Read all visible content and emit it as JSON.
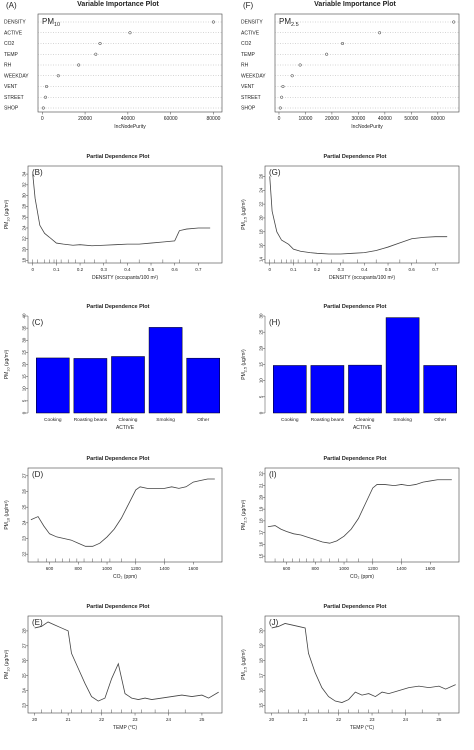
{
  "charts": [
    {
      "id": "A",
      "letter": "(A)",
      "title": "Variable Importance Plot",
      "type": "scatter-dot",
      "panel_label_main": "PM",
      "panel_label_sub": "10",
      "xlabel": "IncNodePurity",
      "xlim": [
        -2000,
        84000
      ],
      "xticks": [
        0,
        20000,
        40000,
        60000,
        80000
      ],
      "categories": [
        "DENSITY",
        "ACTIVE",
        "CO2",
        "TEMP",
        "RH",
        "WEEKDAY",
        "VENT",
        "STREET",
        "SHOP"
      ],
      "values": [
        80000,
        41000,
        27000,
        25000,
        17000,
        7500,
        2000,
        1500,
        500
      ]
    },
    {
      "id": "F",
      "letter": "(F)",
      "title": "Variable Importance Plot",
      "type": "scatter-dot",
      "panel_label_main": "PM",
      "panel_label_sub": "2.5",
      "xlabel": "IncNodePurity",
      "xlim": [
        -1500,
        68000
      ],
      "xticks": [
        0,
        10000,
        20000,
        30000,
        40000,
        50000,
        60000
      ],
      "categories": [
        "DENSITY",
        "ACTIVE",
        "CO2",
        "TEMP",
        "RH",
        "WEEKDAY",
        "VENT",
        "STREET",
        "SHOP"
      ],
      "values": [
        66000,
        38000,
        24000,
        18000,
        8000,
        5000,
        1500,
        1000,
        500
      ]
    },
    {
      "id": "B",
      "letter": "(B)",
      "title": "Partial Dependence Plot",
      "type": "line",
      "ylabel_main": "PM",
      "ylabel_sub": "10",
      "ylabel_unit": " (μg/m³)",
      "xlabel": "DENSITY (occupants/100 m²)",
      "xlim": [
        -0.02,
        0.8
      ],
      "ylim": [
        17.5,
        35.5
      ],
      "xticks": [
        0,
        0.1,
        0.2,
        0.3,
        0.4,
        0.5,
        0.6,
        0.7
      ],
      "yticks": [
        18,
        20,
        22,
        24,
        26,
        28,
        30,
        32,
        34
      ],
      "x": [
        0,
        0.01,
        0.03,
        0.05,
        0.07,
        0.1,
        0.13,
        0.17,
        0.2,
        0.25,
        0.3,
        0.35,
        0.4,
        0.45,
        0.5,
        0.55,
        0.6,
        0.62,
        0.65,
        0.7,
        0.75
      ],
      "y": [
        34,
        29.5,
        24.5,
        23,
        22.3,
        21.2,
        21,
        20.8,
        20.9,
        20.7,
        20.8,
        20.9,
        21,
        21,
        21.2,
        21.4,
        21.6,
        23.5,
        23.8,
        24,
        24
      ],
      "rug": [
        0.0,
        0.02,
        0.05,
        0.07,
        0.09,
        0.1,
        0.12,
        0.15,
        0.18,
        0.22,
        0.26,
        0.31,
        0.37,
        0.45,
        0.55,
        0.62
      ]
    },
    {
      "id": "G",
      "letter": "(G)",
      "title": "Partial Dependence Plot",
      "type": "line",
      "ylabel_main": "PM",
      "ylabel_sub": "2.5",
      "ylabel_unit": " (μg/m³)",
      "xlabel": "DENSITY (occupants/100 m²)",
      "xlim": [
        -0.02,
        0.8
      ],
      "ylim": [
        13.5,
        27.5
      ],
      "xticks": [
        0,
        0.1,
        0.2,
        0.3,
        0.4,
        0.5,
        0.6,
        0.7
      ],
      "yticks": [
        14,
        16,
        18,
        20,
        22,
        24,
        26
      ],
      "x": [
        0,
        0.01,
        0.03,
        0.05,
        0.08,
        0.1,
        0.13,
        0.17,
        0.2,
        0.25,
        0.3,
        0.35,
        0.4,
        0.45,
        0.5,
        0.55,
        0.6,
        0.65,
        0.7,
        0.75
      ],
      "y": [
        26,
        21,
        18,
        16.8,
        16.2,
        15.5,
        15.2,
        15,
        14.9,
        14.8,
        14.8,
        14.9,
        15,
        15.3,
        15.8,
        16.4,
        17,
        17.2,
        17.3,
        17.3
      ],
      "rug": [
        0.0,
        0.02,
        0.05,
        0.07,
        0.09,
        0.1,
        0.12,
        0.15,
        0.18,
        0.22,
        0.26,
        0.31,
        0.37,
        0.45,
        0.55,
        0.62
      ]
    },
    {
      "id": "C",
      "letter": "(C)",
      "title": "Partial Dependence Plot",
      "type": "bar",
      "ylabel_main": "PM",
      "ylabel_sub": "10",
      "ylabel_unit": " (μg/m³)",
      "xlabel": "ACTIVE",
      "ylim": [
        0,
        40
      ],
      "yticks": [
        0,
        5,
        10,
        15,
        20,
        25,
        30,
        35,
        40
      ],
      "categories": [
        "Cooking",
        "Roasting beans",
        "Cleaning",
        "Smoking",
        "Other"
      ],
      "values": [
        22.7,
        22.5,
        23.3,
        35.3,
        22.6
      ],
      "bar_color": "#0000ff"
    },
    {
      "id": "H",
      "letter": "(H)",
      "title": "Partial Dependence Plot",
      "type": "bar",
      "ylabel_main": "PM",
      "ylabel_sub": "2.5",
      "ylabel_unit": " (μg/m³)",
      "xlabel": "ACTIVE",
      "ylim": [
        0,
        30
      ],
      "yticks": [
        0,
        5,
        10,
        15,
        20,
        25,
        30
      ],
      "categories": [
        "Cooking",
        "Roasting beans",
        "Cleaning",
        "Smoking",
        "Other"
      ],
      "values": [
        14.7,
        14.7,
        14.8,
        29.5,
        14.7
      ],
      "bar_color": "#0000ff"
    },
    {
      "id": "D",
      "letter": "(D)",
      "title": "Partial Dependence Plot",
      "type": "line",
      "ylabel_main": "PM",
      "ylabel_sub": "10",
      "ylabel_unit": " (μg/m³)",
      "xlabel": "CO₂ (ppm)",
      "xlim": [
        450,
        1800
      ],
      "ylim": [
        21.5,
        27.5
      ],
      "xticks": [
        600,
        800,
        1000,
        1200,
        1400,
        1600
      ],
      "yticks": [
        22,
        23,
        24,
        25,
        26,
        27
      ],
      "x": [
        470,
        520,
        560,
        600,
        650,
        700,
        750,
        800,
        850,
        900,
        950,
        1000,
        1050,
        1100,
        1150,
        1200,
        1230,
        1280,
        1350,
        1400,
        1450,
        1500,
        1550,
        1600,
        1650,
        1700,
        1750
      ],
      "y": [
        24.2,
        24.4,
        23.8,
        23.3,
        23.1,
        23,
        22.9,
        22.7,
        22.5,
        22.5,
        22.7,
        23.1,
        23.6,
        24.3,
        25.2,
        26.1,
        26.3,
        26.2,
        26.2,
        26.2,
        26.3,
        26.2,
        26.3,
        26.6,
        26.7,
        26.8,
        26.8
      ],
      "rug": [
        520,
        580,
        640,
        690,
        740,
        790,
        840,
        900,
        960,
        1020,
        1100,
        1200,
        1400
      ]
    },
    {
      "id": "I",
      "letter": "(I)",
      "title": "Partial Dependence Plot",
      "type": "line",
      "ylabel_main": "PM",
      "ylabel_sub": "2.5",
      "ylabel_unit": " (μg/m³)",
      "xlabel": "CO₂ (ppm)",
      "xlim": [
        450,
        1800
      ],
      "ylim": [
        14.5,
        22.5
      ],
      "xticks": [
        600,
        800,
        1000,
        1200,
        1400,
        1600
      ],
      "yticks": [
        15,
        16,
        17,
        18,
        19,
        20,
        21,
        22
      ],
      "x": [
        470,
        520,
        560,
        600,
        650,
        700,
        750,
        800,
        850,
        900,
        950,
        1000,
        1050,
        1100,
        1150,
        1200,
        1230,
        1280,
        1350,
        1400,
        1450,
        1500,
        1550,
        1600,
        1650,
        1700,
        1750
      ],
      "y": [
        17.5,
        17.6,
        17.3,
        17.1,
        16.9,
        16.8,
        16.6,
        16.4,
        16.2,
        16.1,
        16.3,
        16.7,
        17.3,
        18.2,
        19.5,
        20.8,
        21.1,
        21.1,
        21,
        21.1,
        21,
        21.1,
        21.3,
        21.4,
        21.5,
        21.5,
        21.5
      ],
      "rug": [
        520,
        580,
        640,
        690,
        740,
        790,
        840,
        900,
        960,
        1020,
        1100,
        1200,
        1400
      ]
    },
    {
      "id": "E",
      "letter": "(E)",
      "title": "Partial Dependence Plot",
      "type": "line",
      "ylabel_main": "PM",
      "ylabel_sub": "10",
      "ylabel_unit": " (μg/m³)",
      "xlabel": "TEMP (°C)",
      "xlim": [
        19.8,
        25.6
      ],
      "ylim": [
        22.5,
        29
      ],
      "xticks": [
        20,
        21,
        22,
        23,
        24,
        25
      ],
      "yticks": [
        23,
        24,
        25,
        26,
        27,
        28
      ],
      "x": [
        20,
        20.2,
        20.4,
        20.6,
        20.8,
        21,
        21.1,
        21.3,
        21.5,
        21.7,
        21.9,
        22.1,
        22.3,
        22.5,
        22.7,
        22.9,
        23.1,
        23.3,
        23.5,
        23.8,
        24.1,
        24.4,
        24.7,
        25,
        25.2,
        25.5
      ],
      "y": [
        28.2,
        28.3,
        28.6,
        28.4,
        28.2,
        28,
        26.5,
        25.5,
        24.5,
        23.6,
        23.3,
        23.5,
        24.8,
        25.8,
        23.8,
        23.5,
        23.4,
        23.5,
        23.4,
        23.5,
        23.6,
        23.7,
        23.6,
        23.7,
        23.5,
        23.9
      ],
      "rug": [
        20.2,
        20.5,
        20.8,
        21.1,
        21.4,
        21.7,
        22,
        22.3,
        22.6,
        22.9,
        23.2,
        23.6,
        24,
        24.5
      ]
    },
    {
      "id": "J",
      "letter": "(J)",
      "title": "Partial Dependence Plot",
      "type": "line",
      "ylabel_main": "PM",
      "ylabel_sub": "2.5",
      "ylabel_unit": " (μg/m³)",
      "xlabel": "TEMP (°C)",
      "xlim": [
        19.8,
        25.6
      ],
      "ylim": [
        14.5,
        21
      ],
      "xticks": [
        20,
        21,
        22,
        23,
        24,
        25
      ],
      "yticks": [
        15,
        16,
        17,
        18,
        19,
        20
      ],
      "x": [
        20,
        20.2,
        20.4,
        20.6,
        20.8,
        21,
        21.1,
        21.3,
        21.5,
        21.7,
        21.9,
        22.1,
        22.3,
        22.5,
        22.7,
        22.9,
        23.1,
        23.3,
        23.5,
        23.8,
        24.1,
        24.4,
        24.7,
        25,
        25.2,
        25.5
      ],
      "y": [
        20.2,
        20.3,
        20.5,
        20.4,
        20.3,
        20.2,
        18.5,
        17.2,
        16.2,
        15.6,
        15.3,
        15.2,
        15.4,
        15.9,
        15.7,
        15.8,
        15.6,
        15.9,
        15.8,
        16,
        16.2,
        16.3,
        16.2,
        16.3,
        16.1,
        16.4
      ],
      "rug": [
        20.2,
        20.5,
        20.8,
        21.1,
        21.4,
        21.7,
        22,
        22.3,
        22.6,
        22.9,
        23.2,
        23.6,
        24,
        24.5
      ]
    }
  ]
}
